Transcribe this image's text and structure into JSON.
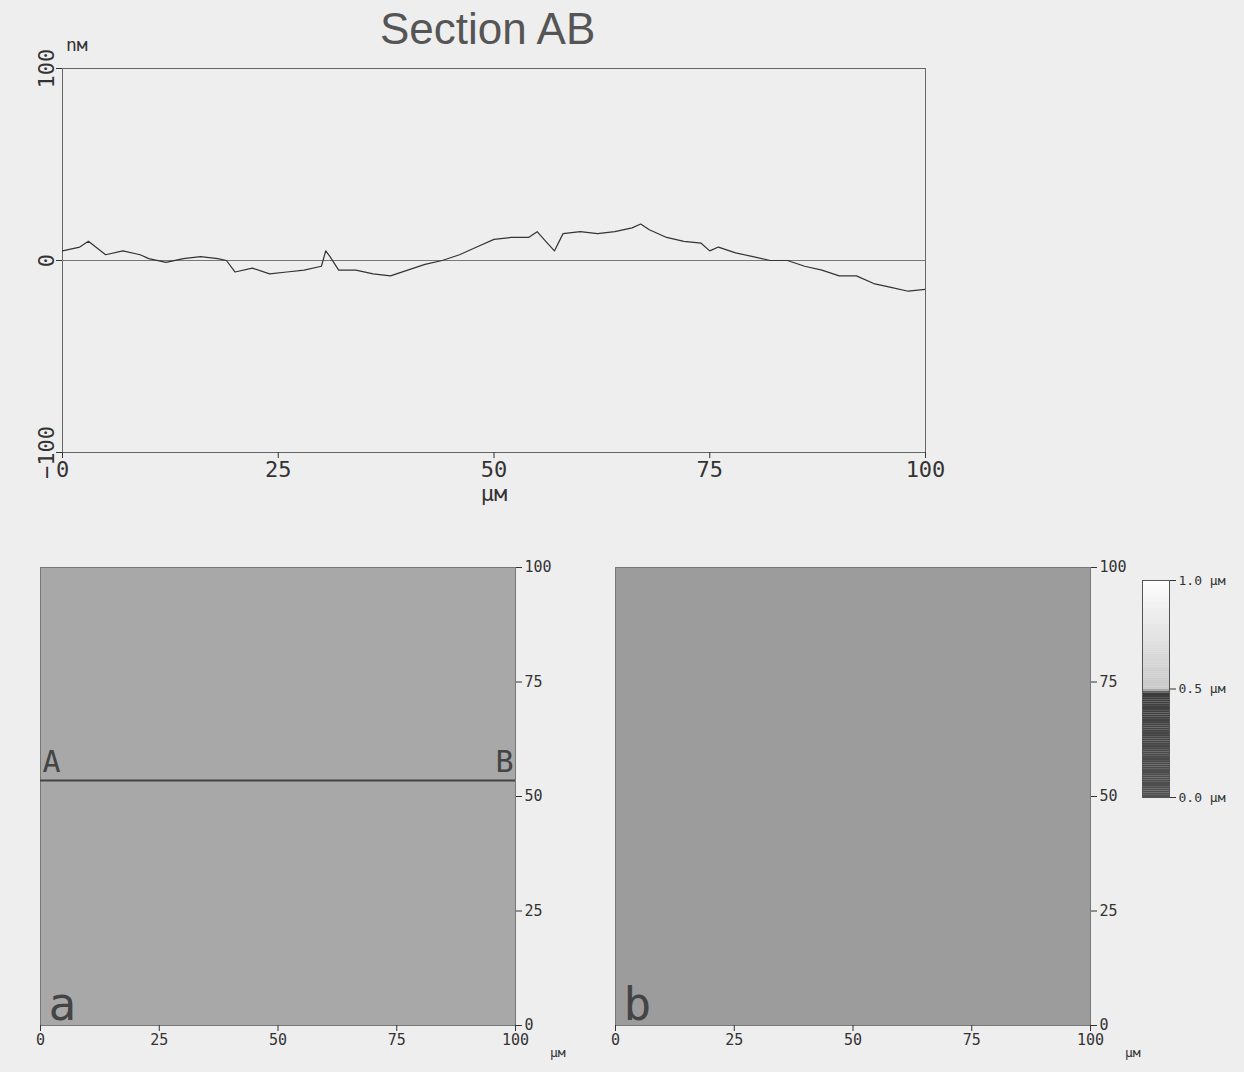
{
  "chart_data": [
    {
      "type": "line",
      "title": "Section AB",
      "x_label": "μм",
      "y_label": "nм",
      "x": [
        0,
        2,
        3,
        5,
        7,
        9,
        10,
        12,
        14,
        16,
        18,
        19,
        20,
        22,
        24,
        26,
        28,
        30,
        30.5,
        31,
        32,
        34,
        36,
        38,
        40,
        42,
        44,
        46,
        48,
        50,
        52,
        54,
        55,
        56,
        57,
        58,
        60,
        62,
        64,
        66,
        67,
        68,
        70,
        72,
        74,
        75,
        76,
        78,
        80,
        82,
        84,
        86,
        88,
        90,
        92,
        94,
        96,
        98,
        100
      ],
      "values": [
        5,
        7,
        10,
        3,
        5,
        3,
        1,
        -1,
        1,
        2,
        1,
        0,
        -6,
        -4,
        -7,
        -6,
        -5,
        -3,
        5,
        2,
        -5,
        -5,
        -7,
        -8,
        -5,
        -2,
        0,
        3,
        7,
        11,
        12,
        12,
        15,
        10,
        5,
        14,
        15,
        14,
        15,
        17,
        19,
        16,
        12,
        10,
        9,
        5,
        7,
        4,
        2,
        0,
        0,
        -3,
        -5,
        -8,
        -8,
        -12,
        -14,
        -16,
        -15
      ],
      "baseline": 0,
      "color": "#333333",
      "xlim": [
        0,
        100
      ],
      "ylim": [
        -100,
        100
      ],
      "xticks": [
        0,
        25,
        50,
        75,
        100
      ],
      "yticks": [
        -100,
        0,
        100
      ],
      "grid": false
    },
    {
      "type": "image",
      "label": "a",
      "x_label": "μм",
      "color": "#a8a8a8",
      "xlim": [
        0,
        100
      ],
      "ylim": [
        0,
        100
      ],
      "xticks": [
        0,
        25,
        50,
        75,
        100
      ],
      "yticks": [
        0,
        25,
        50,
        75,
        100
      ],
      "section": {
        "y": 53.5,
        "start_label": "A",
        "end_label": "B"
      }
    },
    {
      "type": "image",
      "label": "b",
      "x_label": "μм",
      "color": "#9c9c9c",
      "xlim": [
        0,
        100
      ],
      "ylim": [
        0,
        100
      ],
      "xticks": [
        0,
        25,
        50,
        75,
        100
      ],
      "yticks": [
        0,
        25,
        50,
        75,
        100
      ],
      "colorbar": {
        "range": [
          0,
          1
        ],
        "ticks": [
          {
            "value": 0,
            "label": "0.0 μм"
          },
          {
            "value": 0.5,
            "label": "0.5 μм"
          },
          {
            "value": 1,
            "label": "1.0 μм"
          }
        ]
      }
    }
  ]
}
